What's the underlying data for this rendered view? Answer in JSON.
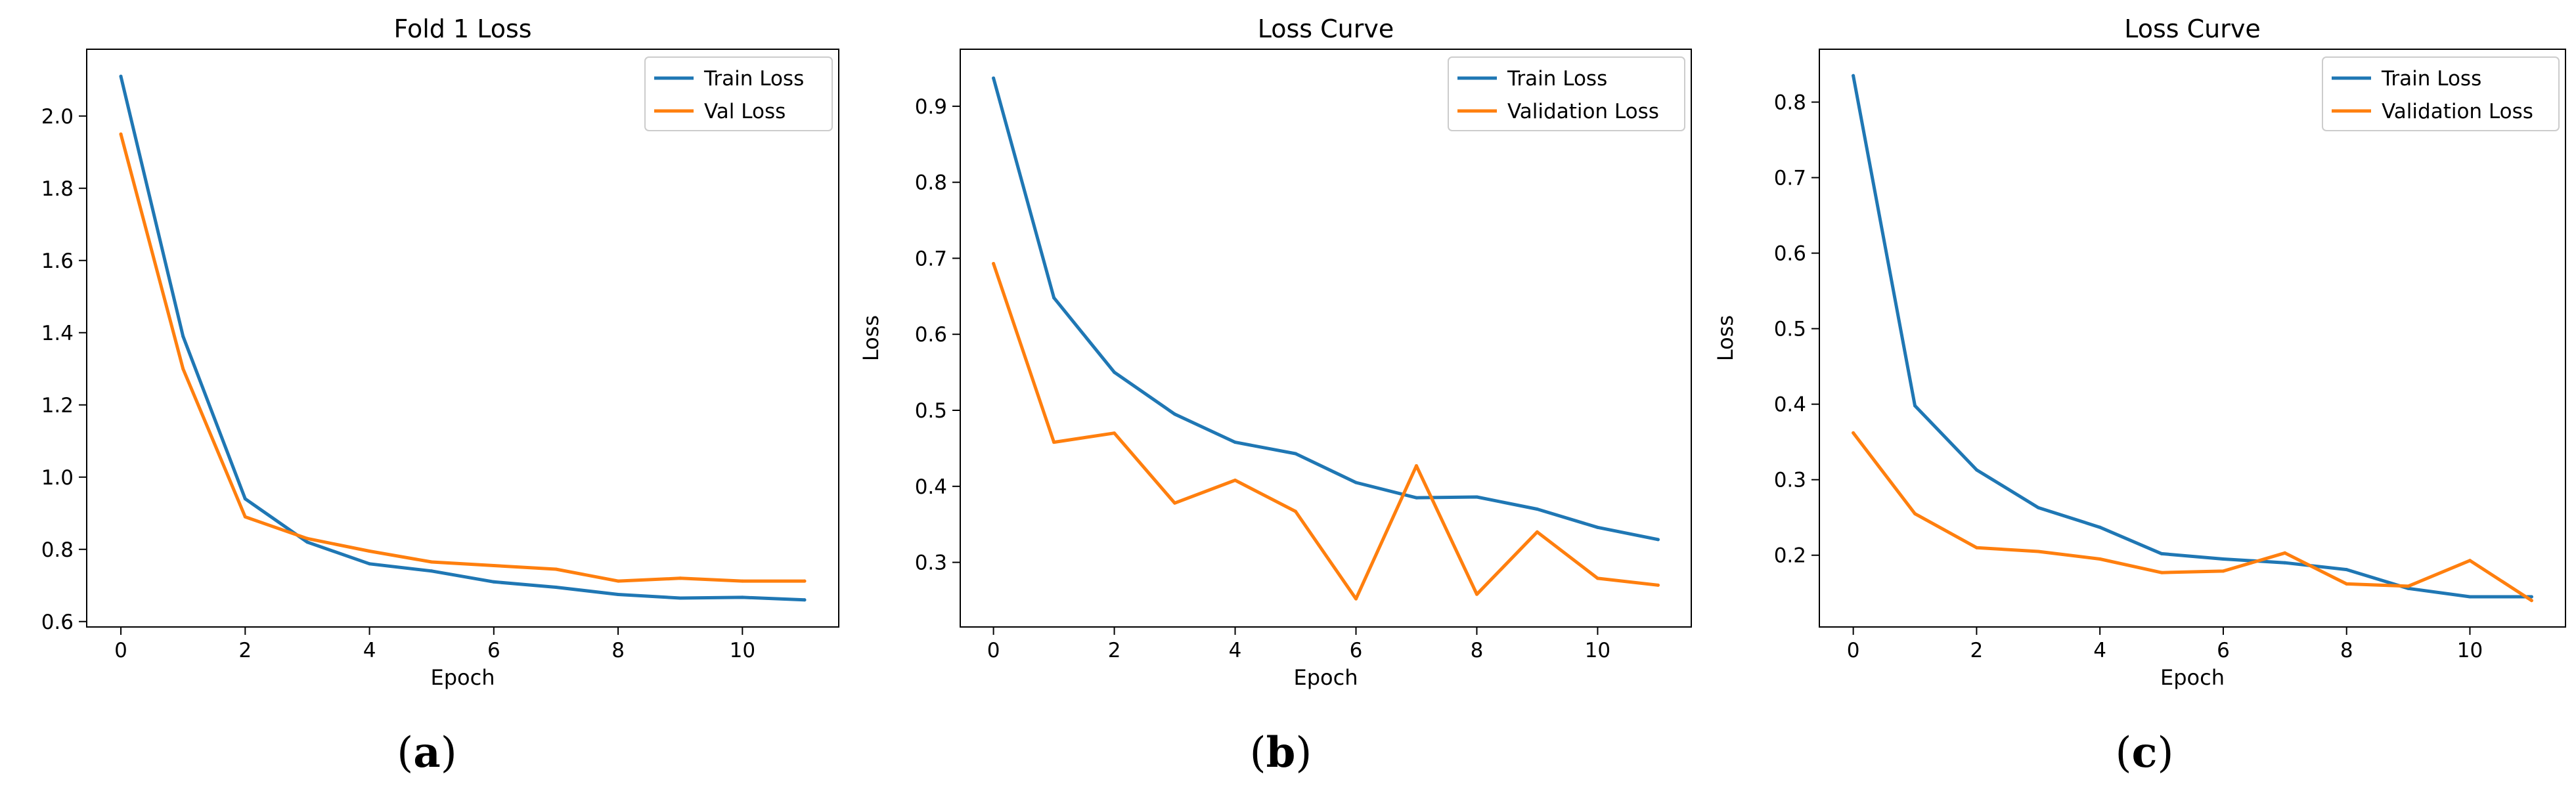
{
  "chart_data": [
    {
      "type": "line",
      "title": "Fold 1 Loss",
      "xlabel": "Epoch",
      "ylabel": "",
      "xlim": [
        -0.55,
        11.55
      ],
      "ylim": [
        0.585,
        2.185
      ],
      "xticks": [
        0,
        2,
        4,
        6,
        8,
        10
      ],
      "yticks": [
        0.6,
        0.8,
        1.0,
        1.2,
        1.4,
        1.6,
        1.8,
        2.0
      ],
      "ytick_labels": [
        "0.6",
        "0.8",
        "1.0",
        "1.2",
        "1.4",
        "1.6",
        "1.8",
        "2.0"
      ],
      "x": [
        0,
        1,
        2,
        3,
        4,
        5,
        6,
        7,
        8,
        9,
        10,
        11
      ],
      "series": [
        {
          "name": "Train Loss",
          "color": "#1f77b4",
          "values": [
            2.11,
            1.39,
            0.94,
            0.82,
            0.76,
            0.74,
            0.71,
            0.695,
            0.675,
            0.665,
            0.667,
            0.66
          ]
        },
        {
          "name": "Val Loss",
          "color": "#ff7f0e",
          "values": [
            1.95,
            1.3,
            0.89,
            0.83,
            0.795,
            0.765,
            0.755,
            0.745,
            0.712,
            0.72,
            0.712,
            0.712
          ]
        }
      ],
      "legend": "top-right",
      "caption_open": "(",
      "caption_letter": "a",
      "caption_close": ")"
    },
    {
      "type": "line",
      "title": "Loss Curve",
      "xlabel": "Epoch",
      "ylabel": "Loss",
      "xlim": [
        -0.55,
        11.55
      ],
      "ylim": [
        0.215,
        0.975
      ],
      "xticks": [
        0,
        2,
        4,
        6,
        8,
        10
      ],
      "yticks": [
        0.3,
        0.4,
        0.5,
        0.6,
        0.7,
        0.8,
        0.9
      ],
      "ytick_labels": [
        "0.3",
        "0.4",
        "0.5",
        "0.6",
        "0.7",
        "0.8",
        "0.9"
      ],
      "x": [
        0,
        1,
        2,
        3,
        4,
        5,
        6,
        7,
        8,
        9,
        10,
        11
      ],
      "series": [
        {
          "name": "Train Loss",
          "color": "#1f77b4",
          "values": [
            0.937,
            0.648,
            0.55,
            0.495,
            0.458,
            0.443,
            0.405,
            0.385,
            0.386,
            0.37,
            0.346,
            0.33
          ]
        },
        {
          "name": "Validation Loss",
          "color": "#ff7f0e",
          "values": [
            0.693,
            0.458,
            0.47,
            0.378,
            0.408,
            0.367,
            0.252,
            0.427,
            0.258,
            0.34,
            0.279,
            0.27
          ]
        }
      ],
      "legend": "top-right",
      "caption_open": "(",
      "caption_letter": "b",
      "caption_close": ")"
    },
    {
      "type": "line",
      "title": "Loss Curve",
      "xlabel": "Epoch",
      "ylabel": "Loss",
      "xlim": [
        -0.55,
        11.55
      ],
      "ylim": [
        0.105,
        0.87
      ],
      "xticks": [
        0,
        2,
        4,
        6,
        8,
        10
      ],
      "yticks": [
        0.2,
        0.3,
        0.4,
        0.5,
        0.6,
        0.7,
        0.8
      ],
      "ytick_labels": [
        "0.2",
        "0.3",
        "0.4",
        "0.5",
        "0.6",
        "0.7",
        "0.8"
      ],
      "x": [
        0,
        1,
        2,
        3,
        4,
        5,
        6,
        7,
        8,
        9,
        10,
        11
      ],
      "series": [
        {
          "name": "Train Loss",
          "color": "#1f77b4",
          "values": [
            0.835,
            0.398,
            0.313,
            0.263,
            0.237,
            0.202,
            0.195,
            0.19,
            0.181,
            0.156,
            0.145,
            0.145
          ]
        },
        {
          "name": "Validation Loss",
          "color": "#ff7f0e",
          "values": [
            0.362,
            0.255,
            0.21,
            0.205,
            0.195,
            0.177,
            0.179,
            0.203,
            0.162,
            0.159,
            0.193,
            0.14
          ]
        }
      ],
      "legend": "top-right",
      "caption_open": "(",
      "caption_letter": "c",
      "caption_close": ")"
    }
  ]
}
